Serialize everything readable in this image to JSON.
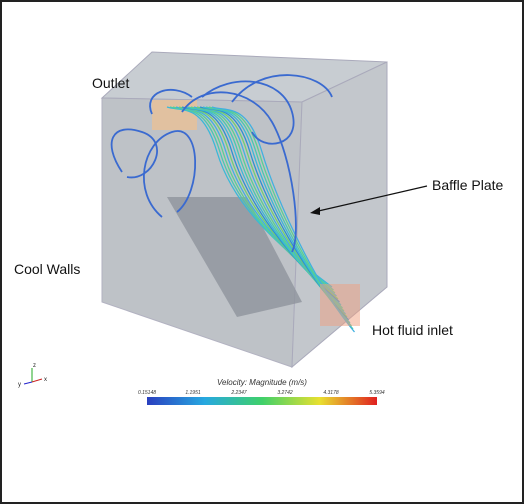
{
  "labels": {
    "outlet": "Outlet",
    "baffle_plate": "Baffle Plate",
    "cool_walls": "Cool Walls",
    "hot_fluid_inlet": "Hot fluid inlet"
  },
  "axes_triad": {
    "z": "z",
    "y": "y",
    "x": "x"
  },
  "colorbar": {
    "title": "Velocity: Magnitude (m/s)",
    "ticks": [
      "0.15148",
      "1.1951",
      "2.2347",
      "3.2742",
      "4.3178",
      "5.3594"
    ]
  }
}
